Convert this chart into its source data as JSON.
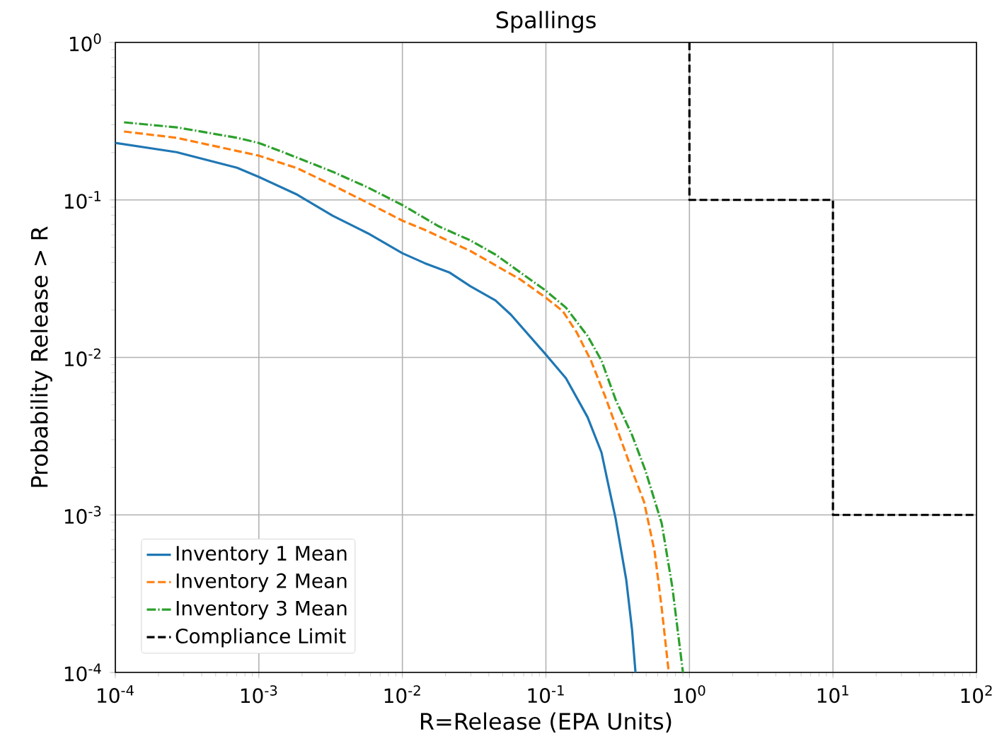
{
  "chart_data": {
    "type": "line",
    "title": "Spallings",
    "xlabel": "R=Release (EPA Units)",
    "ylabel": "Probability Release > R",
    "log": "xy",
    "grid": true,
    "legend": "bottom left",
    "xlim": [
      0.0001,
      100
    ],
    "ylim": [
      0.0001,
      1
    ],
    "xticks": [
      {
        "value": 0.0001,
        "label": "10$^{-4}$"
      },
      {
        "value": 0.001,
        "label": "10$^{-3}$"
      },
      {
        "value": 0.01,
        "label": "10$^{-2}$"
      },
      {
        "value": 0.1,
        "label": "10$^{-1}$"
      },
      {
        "value": 1,
        "label": "10$^{0}$"
      },
      {
        "value": 10,
        "label": "10$^{1}$"
      },
      {
        "value": 100,
        "label": "10$^{2}$"
      }
    ],
    "yticks": [
      {
        "value": 0.0001,
        "label": "10$^{-4}$"
      },
      {
        "value": 0.001,
        "label": "10$^{-3}$"
      },
      {
        "value": 0.01,
        "label": "10$^{-2}$"
      },
      {
        "value": 0.1,
        "label": "10$^{-1}$"
      },
      {
        "value": 1,
        "label": "10$^{0}$"
      }
    ],
    "series": [
      {
        "name": "Inventory 1 Mean",
        "color": "#1f77b4",
        "line_style": "solid",
        "x": [
          0.0001,
          0.000268,
          0.000705,
          0.001,
          0.00185,
          0.00327,
          0.00575,
          0.01,
          0.0143,
          0.0212,
          0.0298,
          0.0445,
          0.057,
          0.0984,
          0.138,
          0.195,
          0.244,
          0.27,
          0.306,
          0.363,
          0.398,
          0.421
        ],
        "values": [
          0.23,
          0.201,
          0.16,
          0.14,
          0.108,
          0.0794,
          0.0614,
          0.0459,
          0.0397,
          0.0347,
          0.0283,
          0.023,
          0.0187,
          0.0106,
          0.00738,
          0.00418,
          0.00249,
          0.00161,
          0.00095,
          0.000387,
          0.000188,
          0.0001
        ]
      },
      {
        "name": "Inventory 2 Mean",
        "color": "#ff7f0e",
        "line_style": "dashed",
        "x": [
          0.000115,
          0.000268,
          0.001,
          0.00185,
          0.00327,
          0.00575,
          0.01,
          0.0143,
          0.0298,
          0.0662,
          0.0984,
          0.131,
          0.164,
          0.206,
          0.258,
          0.324,
          0.398,
          0.483,
          0.572,
          0.641,
          0.718
        ],
        "values": [
          0.272,
          0.248,
          0.191,
          0.159,
          0.124,
          0.0957,
          0.0739,
          0.0646,
          0.0474,
          0.0313,
          0.0242,
          0.0197,
          0.0144,
          0.00955,
          0.00569,
          0.00322,
          0.00192,
          0.00121,
          0.000586,
          0.000256,
          0.0001
        ]
      },
      {
        "name": "Inventory 3 Mean",
        "color": "#2ca02c",
        "line_style": "dashdot",
        "x": [
          0.000115,
          0.000268,
          0.000705,
          0.001,
          0.00148,
          0.00327,
          0.00575,
          0.01,
          0.0179,
          0.0298,
          0.0445,
          0.0662,
          0.0984,
          0.138,
          0.195,
          0.244,
          0.306,
          0.398,
          0.493,
          0.641,
          0.76,
          0.901
        ],
        "values": [
          0.311,
          0.289,
          0.248,
          0.23,
          0.201,
          0.151,
          0.12,
          0.0928,
          0.068,
          0.0553,
          0.045,
          0.0347,
          0.0268,
          0.0207,
          0.0137,
          0.00955,
          0.0054,
          0.00322,
          0.00192,
          0.000885,
          0.000349,
          0.0001
        ]
      },
      {
        "name": "Compliance Limit",
        "color": "#000000",
        "line_style": "dashed",
        "x": [
          1,
          1,
          10,
          10,
          100
        ],
        "values": [
          1,
          0.1,
          0.1,
          0.001,
          0.001
        ]
      }
    ]
  }
}
